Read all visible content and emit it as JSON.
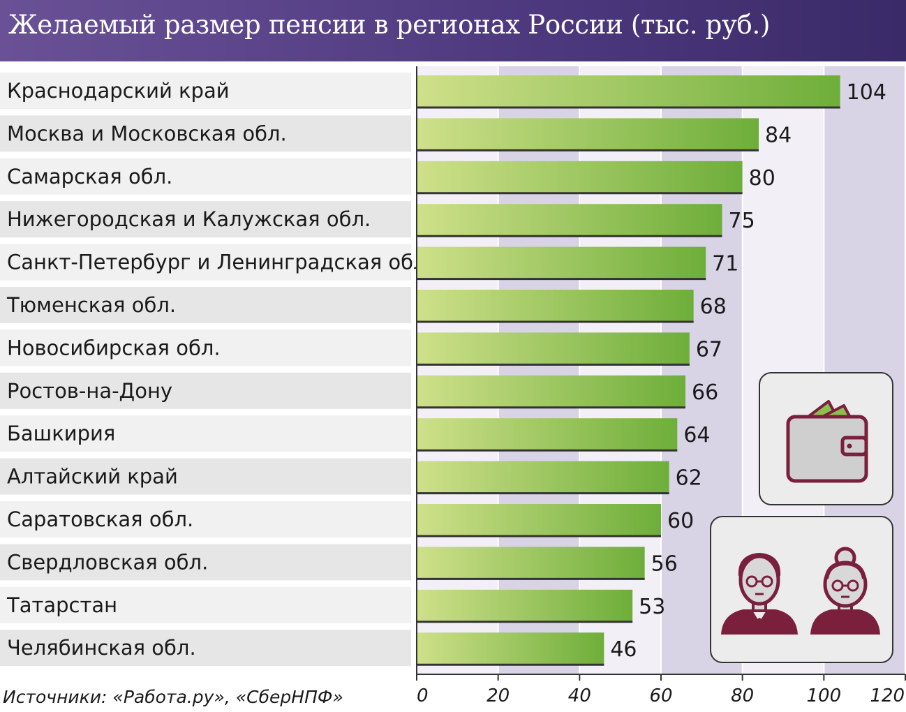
{
  "header": {
    "title": "Желаемый размер пенсии в регионах России (тыс. руб.)"
  },
  "source": "Источники: «Работа.ру», «СберНПФ»",
  "icons": {
    "wallet": "wallet-icon",
    "pensioners": "elderly-couple-icon"
  },
  "colors": {
    "header_start": "#6a5196",
    "header_end": "#3a2a68",
    "bar_light": "#cfe08a",
    "bar_dark": "#6eae3a",
    "band": "#d9d3e6",
    "icon_accent": "#7a1f3c"
  },
  "chart_data": {
    "type": "bar",
    "orientation": "horizontal",
    "title": "Желаемый размер пенсии в регионах России (тыс. руб.)",
    "categories": [
      "Краснодарский край",
      "Москва и Московская обл.",
      "Самарская обл.",
      "Нижегородская и Калужская обл.",
      "Санкт-Петербург и Ленинградская обл.",
      "Тюменская обл.",
      "Новосибирская обл.",
      "Ростов-на-Дону",
      "Башкирия",
      "Алтайский край",
      "Саратовская обл.",
      "Свердловская обл.",
      "Татарстан",
      "Челябинская обл."
    ],
    "values": [
      104,
      84,
      80,
      75,
      71,
      68,
      67,
      66,
      64,
      62,
      60,
      56,
      53,
      46
    ],
    "xlim": [
      0,
      120
    ],
    "ticks": [
      0,
      20,
      40,
      60,
      80,
      100,
      120
    ],
    "tick_labels": [
      "0",
      "20",
      "40",
      "60",
      "80",
      "100",
      "120"
    ],
    "grid": true,
    "legend": "none"
  }
}
